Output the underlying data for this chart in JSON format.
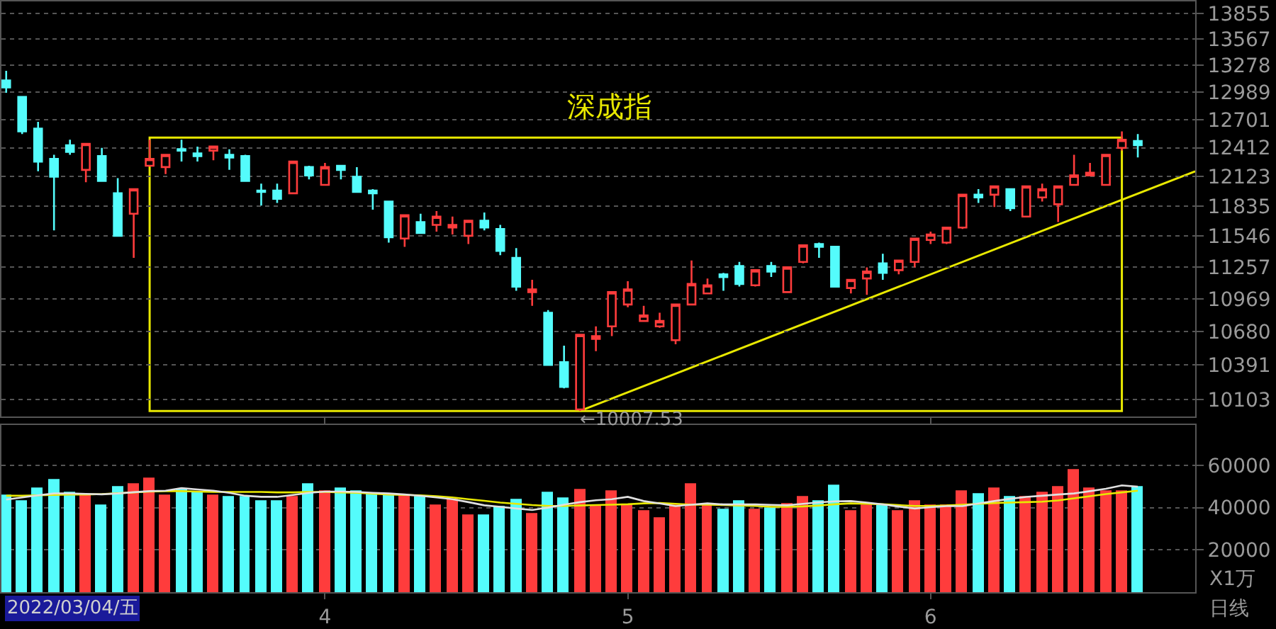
{
  "chart_data": [
    {
      "type": "candlestick",
      "title": "深成指",
      "log": true,
      "grid": "y",
      "tick_labels": "y",
      "categories": [
        null,
        null,
        null,
        null,
        null,
        null,
        null,
        null,
        null,
        null,
        null,
        null,
        null,
        null,
        null,
        null,
        null,
        null,
        null,
        null,
        "4",
        null,
        null,
        null,
        null,
        null,
        null,
        null,
        null,
        null,
        null,
        null,
        null,
        null,
        null,
        null,
        null,
        null,
        null,
        "5",
        null,
        null,
        null,
        null,
        null,
        null,
        null,
        null,
        null,
        null,
        null,
        null,
        null,
        null,
        null,
        null,
        null,
        null,
        "6",
        null,
        null,
        null,
        null,
        null,
        null,
        null,
        null,
        null,
        null,
        null,
        null,
        null
      ],
      "ohlc": [
        [
          13114,
          13217,
          12982,
          13040
        ],
        [
          12938,
          12938,
          12551,
          12579
        ],
        [
          12608,
          12678,
          12175,
          12272
        ],
        [
          12300,
          12341,
          11601,
          12121
        ],
        [
          12438,
          12494,
          12341,
          12369
        ],
        [
          12189,
          12452,
          12067,
          12452
        ],
        [
          12327,
          12410,
          12080,
          12080
        ],
        [
          11958,
          12107,
          11549,
          11549
        ],
        [
          11759,
          11999,
          11343,
          11999
        ],
        [
          12230,
          12494,
          12230,
          12300
        ],
        [
          12217,
          12341,
          12148,
          12341
        ],
        [
          12397,
          12494,
          12272,
          12383
        ],
        [
          12355,
          12424,
          12272,
          12327
        ],
        [
          12383,
          12424,
          12286,
          12424
        ],
        [
          12341,
          12397,
          12189,
          12313
        ],
        [
          12327,
          12341,
          12080,
          12080
        ],
        [
          11985,
          12053,
          11838,
          11972
        ],
        [
          11985,
          12053,
          11864,
          11904
        ],
        [
          11958,
          12272,
          11958,
          12272
        ],
        [
          12217,
          12230,
          12094,
          12134
        ],
        [
          12040,
          12258,
          12040,
          12217
        ],
        [
          12230,
          12230,
          12094,
          12189
        ],
        [
          12121,
          12217,
          11972,
          11972
        ],
        [
          11985,
          11999,
          11798,
          11958
        ],
        [
          11878,
          11878,
          11485,
          11536
        ],
        [
          11523,
          11746,
          11446,
          11746
        ],
        [
          11680,
          11759,
          11575,
          11575
        ],
        [
          11653,
          11785,
          11588,
          11732
        ],
        [
          11627,
          11732,
          11562,
          11653
        ],
        [
          11549,
          11693,
          11472,
          11693
        ],
        [
          11693,
          11772,
          11601,
          11627
        ],
        [
          11614,
          11653,
          11368,
          11407
        ],
        [
          11343,
          11433,
          11042,
          11079
        ],
        [
          11029,
          11141,
          10906,
          11054
        ],
        [
          10845,
          10869,
          10391,
          10391
        ],
        [
          10415,
          10556,
          10194,
          10206
        ],
        [
          10020,
          10651,
          10007.53,
          10651
        ],
        [
          10615,
          10724,
          10509,
          10639
        ],
        [
          10724,
          11029,
          10639,
          11029
        ],
        [
          10918,
          11128,
          10894,
          11054
        ],
        [
          10772,
          10906,
          10772,
          10821
        ],
        [
          10724,
          10845,
          10712,
          10772
        ],
        [
          10604,
          10918,
          10568,
          10918
        ],
        [
          10918,
          11318,
          10918,
          11103
        ],
        [
          11017,
          11153,
          11017,
          11091
        ],
        [
          11191,
          11204,
          11042,
          11166
        ],
        [
          11267,
          11305,
          11079,
          11103
        ],
        [
          11091,
          11229,
          11079,
          11229
        ],
        [
          11267,
          11305,
          11166,
          11216
        ],
        [
          11029,
          11255,
          11029,
          11255
        ],
        [
          11305,
          11459,
          11292,
          11459
        ],
        [
          11472,
          11485,
          11343,
          11446
        ],
        [
          11446,
          11446,
          11079,
          11079
        ],
        [
          11066,
          11141,
          11017,
          11141
        ],
        [
          11153,
          11255,
          11005,
          11216
        ],
        [
          11292,
          11381,
          11141,
          11204
        ],
        [
          11229,
          11318,
          11191,
          11318
        ],
        [
          11305,
          11523,
          11255,
          11523
        ],
        [
          11510,
          11588,
          11472,
          11562
        ],
        [
          11485,
          11627,
          11472,
          11627
        ],
        [
          11627,
          11944,
          11614,
          11944
        ],
        [
          11944,
          11999,
          11864,
          11917
        ],
        [
          11944,
          12026,
          11825,
          12026
        ],
        [
          11999,
          11999,
          11785,
          11812
        ],
        [
          11732,
          12026,
          11732,
          12026
        ],
        [
          11917,
          12053,
          11878,
          11999
        ],
        [
          11851,
          12026,
          11680,
          12026
        ],
        [
          12040,
          12341,
          12040,
          12134
        ],
        [
          12134,
          12258,
          12134,
          12161
        ],
        [
          12040,
          12341,
          12040,
          12341
        ],
        [
          12410,
          12579,
          12383,
          12494
        ],
        [
          12480,
          12551,
          12313,
          12438
        ]
      ],
      "annotations": [
        "←10007.53"
      ],
      "ylim": [
        9960,
        13990
      ],
      "yticks": [
        10103,
        10391,
        10680,
        10969,
        11257,
        11546,
        11835,
        12123,
        12412,
        12701,
        12989,
        13278,
        13567,
        13855
      ]
    },
    {
      "type": "bar",
      "grid": "y",
      "categories": [
        null,
        null,
        null,
        null,
        null,
        null,
        null,
        null,
        null,
        null,
        null,
        null,
        null,
        null,
        null,
        null,
        null,
        null,
        null,
        null,
        "4",
        null,
        null,
        null,
        null,
        null,
        null,
        null,
        null,
        null,
        null,
        null,
        null,
        null,
        null,
        null,
        null,
        null,
        null,
        "5",
        null,
        null,
        null,
        null,
        null,
        null,
        null,
        null,
        null,
        null,
        null,
        null,
        null,
        null,
        null,
        null,
        null,
        null,
        "6",
        null,
        null,
        null,
        null,
        null,
        null,
        null,
        null,
        null,
        null,
        null,
        null,
        null
      ],
      "series": [
        {
          "values": [
            45600,
            42900,
            49100,
            52900,
            46700,
            45600,
            41100,
            49800,
            51100,
            53600,
            45800,
            48000,
            46900,
            45800,
            44700,
            44700,
            42900,
            42900,
            45100,
            50700,
            47400,
            49100,
            47800,
            46200,
            46200,
            45800,
            44500,
            41100,
            43400,
            36200,
            35800,
            40300,
            43600,
            37100,
            46700,
            44000,
            48300,
            41100,
            47400,
            41100,
            37800,
            34500,
            40700,
            51100,
            40700,
            39100,
            42500,
            38900,
            39600,
            41800,
            45100,
            42500,
            50000,
            38000,
            40700,
            40700,
            38000,
            42500,
            41100,
            40700,
            47400,
            46200,
            48900,
            44700,
            45100,
            46900,
            49600,
            57600,
            49100,
            47400,
            47400,
            49600
          ],
          "colors": [
            "#54fcfc",
            "#54fcfc",
            "#54fcfc",
            "#54fcfc",
            "#54fcfc",
            "#ff3c3c",
            "#54fcfc",
            "#54fcfc",
            "#ff3c3c",
            "#ff3c3c",
            "#ff3c3c",
            "#54fcfc",
            "#54fcfc",
            "#ff3c3c",
            "#54fcfc",
            "#54fcfc",
            "#54fcfc",
            "#54fcfc",
            "#ff3c3c",
            "#54fcfc",
            "#ff3c3c",
            "#54fcfc",
            "#54fcfc",
            "#54fcfc",
            "#54fcfc",
            "#ff3c3c",
            "#54fcfc",
            "#ff3c3c",
            "#ff3c3c",
            "#ff3c3c",
            "#54fcfc",
            "#54fcfc",
            "#54fcfc",
            "#ff3c3c",
            "#54fcfc",
            "#54fcfc",
            "#ff3c3c",
            "#ff3c3c",
            "#ff3c3c",
            "#ff3c3c",
            "#ff3c3c",
            "#ff3c3c",
            "#ff3c3c",
            "#ff3c3c",
            "#ff3c3c",
            "#54fcfc",
            "#54fcfc",
            "#ff3c3c",
            "#54fcfc",
            "#ff3c3c",
            "#ff3c3c",
            "#54fcfc",
            "#54fcfc",
            "#ff3c3c",
            "#ff3c3c",
            "#54fcfc",
            "#ff3c3c",
            "#ff3c3c",
            "#ff3c3c",
            "#ff3c3c",
            "#ff3c3c",
            "#54fcfc",
            "#ff3c3c",
            "#54fcfc",
            "#ff3c3c",
            "#ff3c3c",
            "#ff3c3c",
            "#ff3c3c",
            "#ff3c3c",
            "#ff3c3c",
            "#ff3c3c",
            "#54fcfc"
          ]
        },
        {
          "type": "line",
          "color": "#e0e0e0",
          "values": [
            43800,
            44800,
            45800,
            46700,
            46700,
            46500,
            46300,
            46700,
            47300,
            47800,
            48000,
            49200,
            48600,
            48000,
            47000,
            45600,
            45100,
            45100,
            46000,
            47000,
            47600,
            47600,
            47400,
            47000,
            46700,
            46200,
            45600,
            44800,
            44000,
            42600,
            41100,
            40400,
            39600,
            38900,
            40000,
            41400,
            42600,
            43500,
            44000,
            45100,
            43100,
            42000,
            40700,
            41400,
            42000,
            41500,
            41500,
            41500,
            41300,
            41100,
            41800,
            42500,
            43000,
            43100,
            42400,
            41500,
            40500,
            39600,
            40200,
            40700,
            40700,
            42000,
            43100,
            44200,
            45100,
            45600,
            46200,
            46700,
            47800,
            48900,
            50500,
            49900
          ]
        },
        {
          "type": "line",
          "color": "#e8e800",
          "values": [
            45600,
            45600,
            45800,
            46000,
            46200,
            46200,
            46400,
            46800,
            47200,
            47600,
            47800,
            47800,
            47600,
            47400,
            47400,
            47400,
            47400,
            47200,
            47200,
            47400,
            47400,
            47200,
            47000,
            46600,
            46200,
            46000,
            45800,
            45400,
            44800,
            44000,
            43200,
            42400,
            41800,
            41200,
            40800,
            40800,
            41000,
            41200,
            41400,
            41600,
            42000,
            42200,
            41800,
            41400,
            41400,
            41200,
            41000,
            40800,
            40400,
            40400,
            40600,
            41000,
            41600,
            42000,
            41800,
            41600,
            41200,
            40800,
            40800,
            41000,
            41400,
            41800,
            42200,
            42400,
            42600,
            42800,
            43400,
            44400,
            45400,
            46400,
            47200,
            48000
          ]
        }
      ],
      "annotations": [
        "2022/03/04/五",
        "X1万",
        "日线"
      ],
      "ylim": [
        0,
        79000
      ],
      "yticks": [
        20000,
        40000,
        60000
      ]
    }
  ]
}
